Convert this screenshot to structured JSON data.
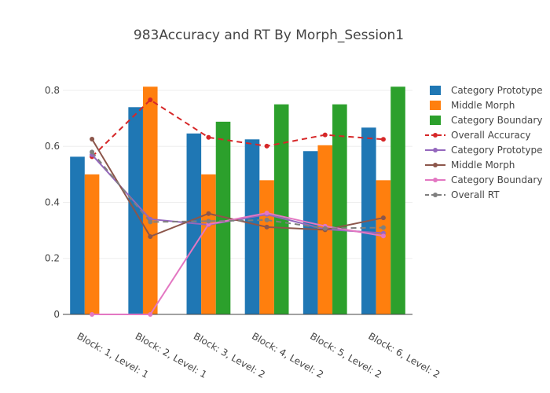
{
  "chart_data": {
    "type": "bar",
    "title": "983Accuracy and RT By Morph_Session1",
    "xlabel": "",
    "ylabel": "",
    "ylim": [
      0,
      0.87
    ],
    "yticks": [
      "0",
      "0.2",
      "0.4",
      "0.6",
      "0.8"
    ],
    "grid": true,
    "legend_position": "right",
    "categories": [
      "Block: 1, Level: 1",
      "Block: 2, Level: 1",
      "Block: 3, Level: 2",
      "Block: 4, Level: 2",
      "Block: 5, Level: 2",
      "Block: 6, Level: 2"
    ],
    "bar_series": [
      {
        "name": "Category Prototype",
        "color": "#1f77b4",
        "values": [
          0.563,
          0.74,
          0.646,
          0.625,
          0.583,
          0.667
        ]
      },
      {
        "name": "Middle Morph",
        "color": "#ff7f0e",
        "values": [
          0.5,
          0.813,
          0.5,
          0.479,
          0.604,
          0.479
        ]
      },
      {
        "name": "Category Boundary",
        "color": "#2ca02c",
        "values": [
          null,
          null,
          0.688,
          0.75,
          0.75,
          0.813
        ]
      }
    ],
    "line_series": [
      {
        "name": "Overall Accuracy",
        "color": "#d62728",
        "dash": "7,5",
        "values": [
          0.563,
          0.766,
          0.632,
          0.601,
          0.641,
          0.625
        ]
      },
      {
        "name": "Category Prototype",
        "color": "#9467bd",
        "dash": "",
        "values": [
          0.57,
          0.34,
          0.32,
          0.357,
          0.304,
          0.29
        ]
      },
      {
        "name": "Middle Morph",
        "color": "#8c564b",
        "dash": "",
        "values": [
          0.626,
          0.278,
          0.36,
          0.312,
          0.302,
          0.345
        ]
      },
      {
        "name": "Category Boundary",
        "color": "#e377c2",
        "dash": "",
        "values": [
          0.0,
          0.0,
          0.322,
          0.362,
          0.315,
          0.28
        ]
      },
      {
        "name": "Overall RT",
        "color": "#7f7f7f",
        "dash": "7,5",
        "values": [
          0.58,
          0.33,
          0.333,
          0.337,
          0.307,
          0.31
        ]
      }
    ]
  }
}
